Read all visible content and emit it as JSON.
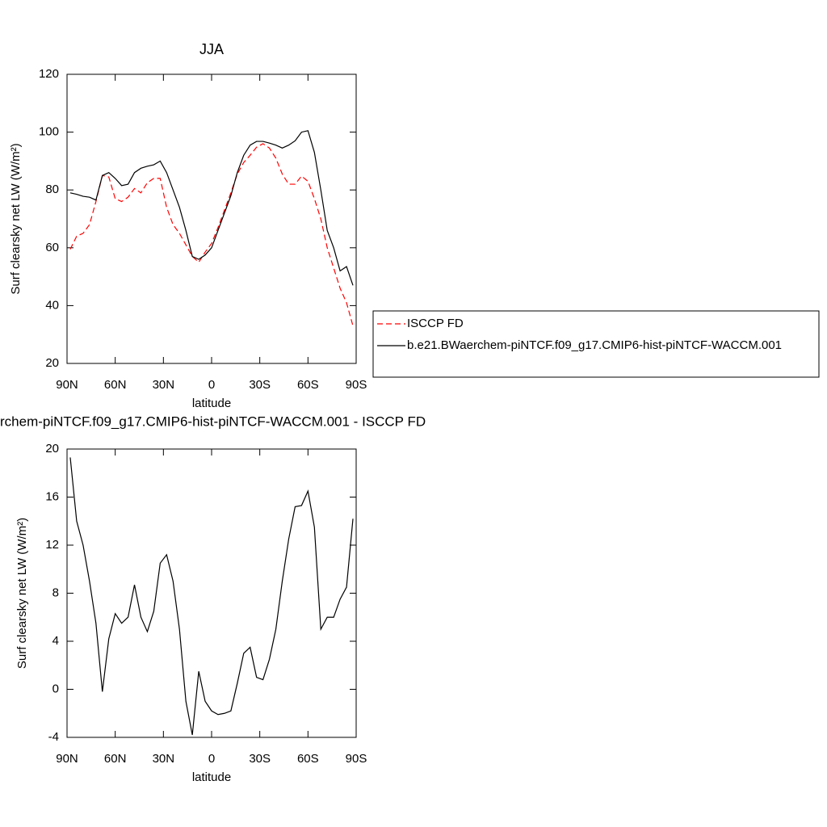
{
  "chart_data": [
    {
      "type": "line",
      "title": "JJA",
      "xlabel": "latitude",
      "ylabel": "Surf clearsky net LW (W/m²)",
      "x": [
        88,
        84,
        80,
        76,
        72,
        68,
        64,
        60,
        56,
        52,
        48,
        44,
        40,
        36,
        32,
        28,
        24,
        20,
        16,
        12,
        8,
        4,
        0,
        -4,
        -8,
        -12,
        -16,
        -20,
        -24,
        -28,
        -32,
        -36,
        -40,
        -44,
        -48,
        -52,
        -56,
        -60,
        -64,
        -68,
        -72,
        -76,
        -80,
        -84,
        -88
      ],
      "xlim": [
        90,
        -90
      ],
      "xticks": [
        {
          "value": 90,
          "label": "90N"
        },
        {
          "value": 60,
          "label": "60N"
        },
        {
          "value": 30,
          "label": "30N"
        },
        0,
        {
          "value": -30,
          "label": "30S"
        },
        {
          "value": -60,
          "label": "60S"
        },
        {
          "value": -90,
          "label": "90S"
        }
      ],
      "ylim": [
        20,
        120
      ],
      "yticks": [
        20,
        40,
        60,
        80,
        100,
        120
      ],
      "legend": "right",
      "series": [
        {
          "name": "ISCCP FD",
          "color": "#ff0000",
          "linestyle": "dashed",
          "values": [
            59.5,
            64,
            65,
            68,
            76,
            85,
            84.5,
            77,
            76,
            77.5,
            80.5,
            79,
            82.5,
            84,
            84,
            74,
            68,
            65,
            61,
            57,
            55,
            58.5,
            61.5,
            67,
            73,
            79,
            85.5,
            89.5,
            92,
            94.8,
            96,
            94.5,
            91,
            85.5,
            82,
            82,
            84.8,
            83,
            77,
            70,
            60,
            53,
            46,
            41,
            33
          ]
        },
        {
          "name": "b.e21.BWaerchem-piNTCF.f09_g17.CMIP6-hist-piNTCF-WACCM.001",
          "color": "#000000",
          "linestyle": "solid",
          "values": [
            79,
            78.5,
            77.8,
            77.5,
            76.5,
            85,
            86,
            84,
            81.5,
            82,
            86,
            87.5,
            88.2,
            88.7,
            90,
            86,
            80,
            74,
            66,
            57,
            56,
            57.5,
            60,
            66,
            72,
            78,
            86,
            92,
            95.5,
            96.8,
            96.8,
            96.2,
            95.5,
            94.5,
            95.5,
            97,
            100,
            100.5,
            93,
            80,
            66,
            60,
            52,
            53.5,
            47
          ]
        }
      ]
    },
    {
      "type": "line",
      "title": "rchem-piNTCF.f09_g17.CMIP6-hist-piNTCF-WACCM.001 - ISCCP FD",
      "xlabel": "latitude",
      "ylabel": "Surf clearsky net LW (W/m²)",
      "x": [
        88,
        84,
        80,
        76,
        72,
        68,
        64,
        60,
        56,
        52,
        48,
        44,
        40,
        36,
        32,
        28,
        24,
        20,
        16,
        12,
        8,
        4,
        0,
        -4,
        -8,
        -12,
        -16,
        -20,
        -24,
        -28,
        -32,
        -36,
        -40,
        -44,
        -48,
        -52,
        -56,
        -60,
        -64,
        -68,
        -72,
        -76,
        -80,
        -84,
        -88
      ],
      "xlim": [
        90,
        -90
      ],
      "xticks": [
        {
          "value": 90,
          "label": "90N"
        },
        {
          "value": 60,
          "label": "60N"
        },
        {
          "value": 30,
          "label": "30N"
        },
        0,
        {
          "value": -30,
          "label": "30S"
        },
        {
          "value": -60,
          "label": "60S"
        },
        {
          "value": -90,
          "label": "90S"
        }
      ],
      "ylim": [
        -4,
        20
      ],
      "yticks": [
        -4,
        0,
        4,
        8,
        12,
        16,
        20
      ],
      "series": [
        {
          "color": "#000000",
          "linestyle": "solid",
          "values": [
            19.3,
            14,
            12,
            9,
            5.5,
            -0.2,
            4.2,
            6.3,
            5.5,
            6,
            8.7,
            6,
            4.8,
            6.5,
            10.5,
            11.2,
            9,
            5,
            -1,
            -3.8,
            1.5,
            -1,
            -1.8,
            -2.1,
            -2,
            -1.8,
            0.5,
            3,
            3.5,
            1,
            0.8,
            2.5,
            5,
            9,
            12.5,
            15.2,
            15.3,
            16.5,
            13.5,
            5,
            6,
            6,
            7.5,
            8.5,
            14.2
          ]
        }
      ]
    }
  ]
}
